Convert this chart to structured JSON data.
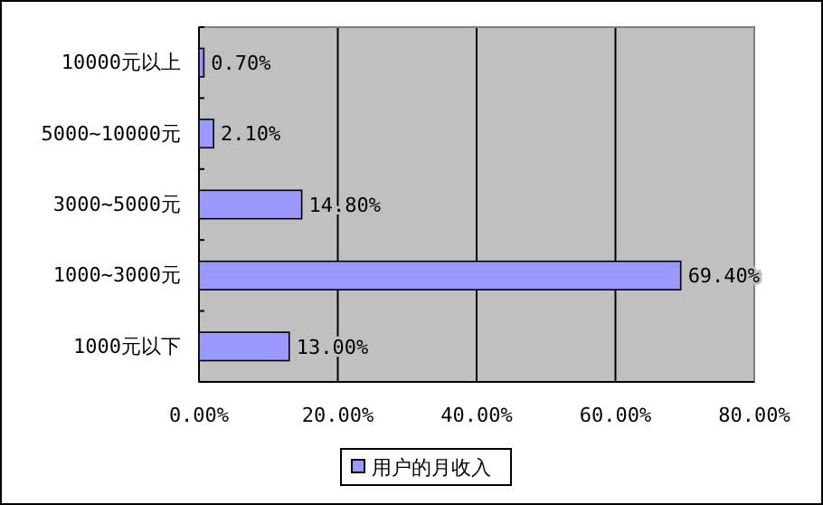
{
  "chart_data": {
    "type": "bar",
    "orientation": "horizontal",
    "categories": [
      "10000元以上",
      "5000~10000元",
      "3000~5000元",
      "1000~3000元",
      "1000元以下"
    ],
    "series": [
      {
        "name": "用户的月收入",
        "color": "#9999ff",
        "values": [
          0.7,
          2.1,
          14.8,
          69.4,
          13.0
        ]
      }
    ],
    "value_labels": [
      "0.70%",
      "2.10%",
      "14.80%",
      "69.40%",
      "13.00%"
    ],
    "xlim": [
      0,
      80
    ],
    "xticks": [
      {
        "value": 0,
        "label": "0.00%"
      },
      {
        "value": 20,
        "label": "20.00%"
      },
      {
        "value": 40,
        "label": "40.00%"
      },
      {
        "value": 60,
        "label": "60.00%"
      },
      {
        "value": 80,
        "label": "80.00%"
      }
    ],
    "grid": "x",
    "legend": "bottom"
  }
}
